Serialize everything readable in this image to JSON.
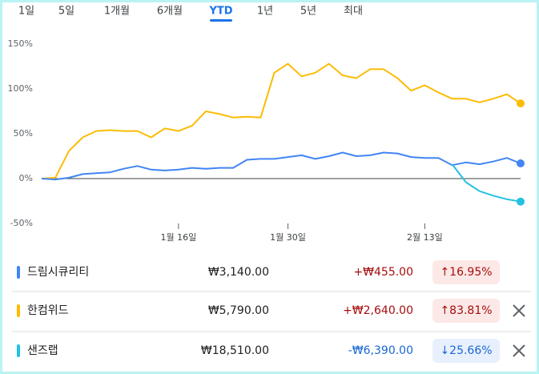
{
  "tabs": [
    {
      "label": "1일"
    },
    {
      "label": "5일"
    },
    {
      "label": "1개월"
    },
    {
      "label": "6개월"
    },
    {
      "label": "YTD",
      "selected": true
    },
    {
      "label": "1년"
    },
    {
      "label": "5년"
    },
    {
      "label": "최대"
    }
  ],
  "chart_data": {
    "type": "line",
    "categories": [
      null,
      null,
      null,
      null,
      null,
      null,
      null,
      null,
      null,
      null,
      "1월 16일",
      null,
      null,
      null,
      null,
      null,
      null,
      null,
      "1월 30일",
      null,
      null,
      null,
      null,
      null,
      null,
      null,
      null,
      null,
      "2월 13일",
      null,
      null,
      null,
      null,
      null,
      null,
      null
    ],
    "ylim": [
      -50,
      150
    ],
    "yticks": [
      {
        "value": 150,
        "label": "150%"
      },
      {
        "value": 100,
        "label": "100%"
      },
      {
        "value": 50,
        "label": "50%"
      },
      {
        "value": 0,
        "label": "0%"
      },
      {
        "value": -50,
        "label": "-50%"
      }
    ],
    "series": [
      {
        "name": "드림시큐리티",
        "color": "#4285f4",
        "values": [
          0,
          -1,
          1,
          5,
          6,
          7,
          11,
          14,
          10,
          9,
          10,
          12,
          11,
          12,
          12,
          21,
          22,
          22,
          24,
          26,
          22,
          25,
          29,
          25,
          26,
          29,
          28,
          24,
          23,
          23,
          15,
          18,
          16,
          19,
          23,
          16.95
        ]
      },
      {
        "name": "한컴위드",
        "color": "#fbbc04",
        "values": [
          0,
          1,
          31,
          46,
          53,
          54,
          53,
          53,
          46,
          56,
          53,
          59,
          75,
          72,
          68,
          69,
          68,
          118,
          128,
          114,
          118,
          128,
          115,
          112,
          122,
          122,
          112,
          98,
          104,
          96,
          89,
          89,
          85,
          89,
          94,
          83.81
        ]
      },
      {
        "name": "샌즈랩",
        "color": "#24c1e0",
        "values": [
          null,
          null,
          null,
          null,
          null,
          null,
          null,
          null,
          null,
          null,
          null,
          null,
          null,
          null,
          null,
          null,
          null,
          null,
          null,
          null,
          null,
          null,
          null,
          null,
          null,
          null,
          null,
          null,
          null,
          null,
          16,
          -4,
          -14,
          -19,
          -23,
          -25.66
        ]
      }
    ]
  },
  "holdings": [
    {
      "price": "₩3,140.00",
      "change": "+₩455.00",
      "change_pct": "↑16.95%",
      "direction": "up",
      "removable": false
    },
    {
      "price": "₩5,790.00",
      "change": "+₩2,640.00",
      "change_pct": "↑83.81%",
      "direction": "up",
      "removable": true
    },
    {
      "price": "₩18,510.00",
      "change": "-₩6,390.00",
      "change_pct": "↓25.66%",
      "direction": "down",
      "removable": true
    }
  ]
}
